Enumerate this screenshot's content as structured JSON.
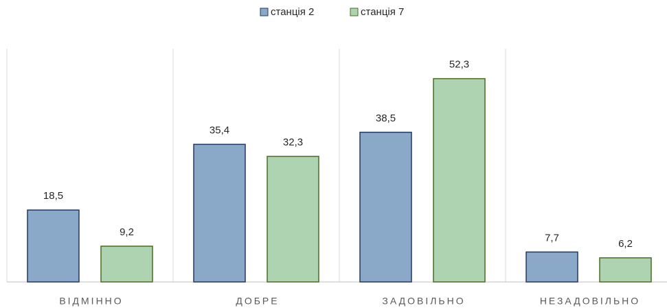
{
  "chart_data": {
    "type": "bar",
    "categories": [
      "ВІДМІННО",
      "ДОБРЕ",
      "ЗАДОВІЛЬНО",
      "НЕЗАДОВІЛЬНО"
    ],
    "series": [
      {
        "name": "станція 2",
        "color": "#8aa8c7",
        "edge_color": "#1f3864",
        "values": [
          18.5,
          35.4,
          38.5,
          7.7
        ],
        "value_labels": [
          "18,5",
          "35,4",
          "38,5",
          "7,7"
        ]
      },
      {
        "name": "станція 7",
        "color": "#aed3b0",
        "edge_color": "#4b6b22",
        "values": [
          9.2,
          32.3,
          52.3,
          6.2
        ],
        "value_labels": [
          "9,2",
          "32,3",
          "52,3",
          "6,2"
        ]
      }
    ],
    "ylim": [
      0,
      60
    ],
    "legend": "top"
  }
}
